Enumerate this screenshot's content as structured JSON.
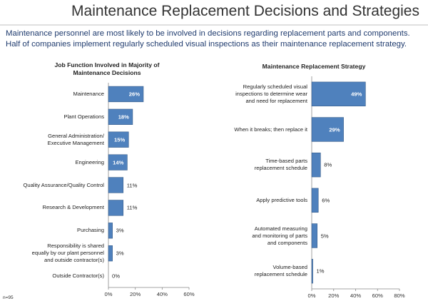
{
  "title": "Maintenance Replacement Decisions and Strategies",
  "subtitle": "Maintenance personnel are most likely to be involved in decisions regarding replacement parts and components.\nHalf of companies implement regularly scheduled visual inspections as their maintenance replacement strategy.",
  "note": "n=95",
  "chart_data": [
    {
      "type": "barh",
      "title": "Job Function Involved in Majority of\nMaintenance Decisions",
      "categories": [
        "Maintenance",
        "Plant Operations",
        "General Administration/\nExecutive Management",
        "Engineering",
        "Quality Assurance/Quality Control",
        "Research & Development",
        "Purchasing",
        "Responsibility is shared\nequally by our plant personnel\nand outside contractor(s)",
        "Outside Contractor(s)"
      ],
      "values": [
        26,
        18,
        15,
        14,
        11,
        11,
        3,
        3,
        0
      ],
      "value_labels": [
        "26%",
        "18%",
        "15%",
        "14%",
        "11%",
        "11%",
        "3%",
        "3%",
        "0%"
      ],
      "color": "#4f81bd",
      "xlim": [
        0,
        60
      ],
      "xticks": [
        {
          "value": 0,
          "label": "0%"
        },
        {
          "value": 20,
          "label": "20%"
        },
        {
          "value": 40,
          "label": "40%"
        },
        {
          "value": 60,
          "label": "60%"
        }
      ]
    },
    {
      "type": "barh",
      "title": "Maintenance Replacement Strategy",
      "categories": [
        "Regularly scheduled visual\ninspections to determine wear\nand need for replacement",
        "When it breaks; then replace it",
        "Time-based parts\nreplacement schedule",
        "Apply predictive tools",
        "Automated measuring\nand monitoring of parts\nand components",
        "Volume-based\nreplacement schedule"
      ],
      "values": [
        49,
        29,
        8,
        6,
        5,
        1
      ],
      "value_labels": [
        "49%",
        "29%",
        "8%",
        "6%",
        "5%",
        "1%"
      ],
      "color": "#4f81bd",
      "xlim": [
        0,
        80
      ],
      "xticks": [
        {
          "value": 0,
          "label": "0%"
        },
        {
          "value": 20,
          "label": "20%"
        },
        {
          "value": 40,
          "label": "40%"
        },
        {
          "value": 60,
          "label": "60%"
        },
        {
          "value": 80,
          "label": "80%"
        }
      ]
    }
  ]
}
